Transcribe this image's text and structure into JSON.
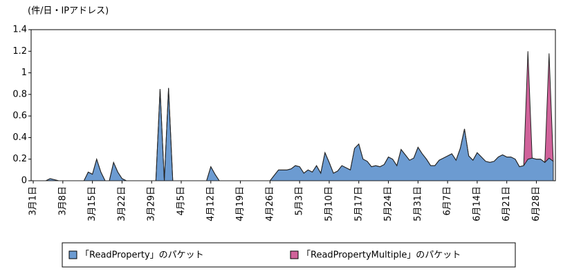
{
  "chart_data": {
    "type": "area",
    "stacked": true,
    "y_axis_label": "(件/日・IPアドレス)",
    "categories": [
      "3月1日",
      null,
      null,
      null,
      null,
      null,
      null,
      "3月8日",
      null,
      null,
      null,
      null,
      null,
      null,
      "3月15日",
      null,
      null,
      null,
      null,
      null,
      null,
      "3月22日",
      null,
      null,
      null,
      null,
      null,
      null,
      "3月29日",
      null,
      null,
      null,
      null,
      null,
      null,
      "4月5日",
      null,
      null,
      null,
      null,
      null,
      null,
      "4月12日",
      null,
      null,
      null,
      null,
      null,
      null,
      "4月19日",
      null,
      null,
      null,
      null,
      null,
      null,
      "4月26日",
      null,
      null,
      null,
      null,
      null,
      null,
      "5月3日",
      null,
      null,
      null,
      null,
      null,
      null,
      "5月10日",
      null,
      null,
      null,
      null,
      null,
      null,
      "5月17日",
      null,
      null,
      null,
      null,
      null,
      null,
      "5月24日",
      null,
      null,
      null,
      null,
      null,
      null,
      "5月31日",
      null,
      null,
      null,
      null,
      null,
      null,
      "6月7日",
      null,
      null,
      null,
      null,
      null,
      null,
      "6月14日",
      null,
      null,
      null,
      null,
      null,
      null,
      "6月21日",
      null,
      null,
      null,
      null,
      null,
      null,
      "6月28日",
      null,
      null,
      null,
      null
    ],
    "series": [
      {
        "name": "「ReadProperty」のパケット",
        "color": "#6c9bd1",
        "values": [
          0,
          0,
          0,
          0,
          0.02,
          0.01,
          0,
          0,
          0,
          0,
          0,
          0,
          0,
          0.08,
          0.06,
          0.2,
          0.08,
          0,
          0,
          0.17,
          0.08,
          0.02,
          0,
          0,
          0,
          0,
          0,
          0,
          0,
          0,
          0.85,
          0,
          0.86,
          0,
          0,
          0,
          0,
          0,
          0,
          0,
          0,
          0,
          0.13,
          0.06,
          0,
          0,
          0,
          0,
          0,
          0,
          0,
          0,
          0,
          0,
          0,
          0,
          0,
          0.05,
          0.1,
          0.1,
          0.1,
          0.11,
          0.14,
          0.13,
          0.07,
          0.1,
          0.08,
          0.14,
          0.07,
          0.26,
          0.17,
          0.07,
          0.09,
          0.14,
          0.12,
          0.1,
          0.3,
          0.34,
          0.2,
          0.18,
          0.13,
          0.14,
          0.13,
          0.15,
          0.22,
          0.2,
          0.14,
          0.29,
          0.24,
          0.19,
          0.21,
          0.31,
          0.25,
          0.2,
          0.14,
          0.14,
          0.19,
          0.21,
          0.23,
          0.25,
          0.19,
          0.3,
          0.48,
          0.23,
          0.19,
          0.26,
          0.22,
          0.18,
          0.17,
          0.18,
          0.22,
          0.24,
          0.22,
          0.22,
          0.2,
          0.13,
          0.14,
          0.2,
          0.21,
          0.2,
          0.2,
          0.17,
          0.21,
          0.18
        ]
      },
      {
        "name": "「ReadPropertyMultiple」のパケット",
        "color": "#d0629a",
        "values": [
          0,
          0,
          0,
          0,
          0,
          0,
          0,
          0,
          0,
          0,
          0,
          0,
          0,
          0,
          0,
          0,
          0,
          0,
          0,
          0,
          0,
          0,
          0,
          0,
          0,
          0,
          0,
          0,
          0,
          0,
          0,
          0,
          0,
          0,
          0,
          0,
          0,
          0,
          0,
          0,
          0,
          0,
          0,
          0,
          0,
          0,
          0,
          0,
          0,
          0,
          0,
          0,
          0,
          0,
          0,
          0,
          0,
          0,
          0,
          0,
          0,
          0,
          0,
          0,
          0,
          0,
          0,
          0,
          0,
          0,
          0,
          0,
          0,
          0,
          0,
          0,
          0,
          0,
          0,
          0,
          0,
          0,
          0,
          0,
          0,
          0,
          0,
          0,
          0,
          0,
          0,
          0,
          0,
          0,
          0,
          0,
          0,
          0,
          0,
          0,
          0,
          0,
          0,
          0,
          0,
          0,
          0,
          0,
          0,
          0,
          0,
          0,
          0,
          0,
          0,
          0,
          0,
          1,
          0,
          0,
          0,
          0,
          0.97,
          0
        ]
      }
    ],
    "ylim": [
      0,
      1.4
    ],
    "yticks": [
      0,
      0.2,
      0.4,
      0.6,
      0.8,
      1,
      1.2,
      1.4
    ],
    "grid": false,
    "legend": "bottom"
  }
}
